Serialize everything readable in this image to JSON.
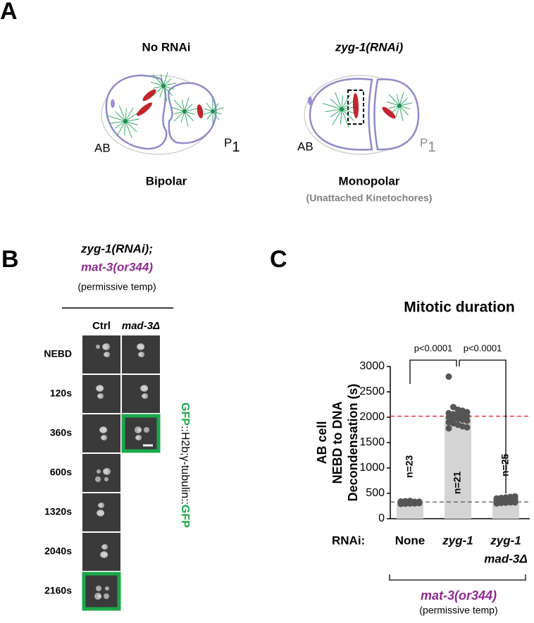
{
  "panel_a": {
    "label": "A",
    "left": {
      "title": "No RNAi",
      "cell_ab": "AB",
      "cell_p": "P",
      "cell_p_sub": "1",
      "caption": "Bipolar"
    },
    "right": {
      "title": "zyg-1(RNAi)",
      "cell_ab": "AB",
      "cell_p": "P",
      "cell_p_sub": "1",
      "caption": "Monopolar",
      "subcaption": "(Unattached Kinetochores)"
    }
  },
  "panel_b": {
    "label": "B",
    "title_line1": "zyg-1(RNAi);",
    "title_line2": "mat-3(or344)",
    "title_line3": "(permissive temp)",
    "columns": [
      "Ctrl",
      "mad-3Δ"
    ],
    "rows": [
      "NEBD",
      "120s",
      "360s",
      "600s",
      "1320s",
      "2040s",
      "2160s"
    ],
    "side_label": [
      "GFP",
      "::H2b;γ-tubulin::",
      "GFP"
    ]
  },
  "panel_c": {
    "label": "C"
  },
  "chart_data": {
    "type": "bar",
    "title": "Mitotic duration",
    "y_label": [
      "AB cell",
      "NEBD to DNA",
      "Decondensation (s)"
    ],
    "x_label": "RNAi:",
    "categories": [
      [
        "None"
      ],
      [
        "zyg-1"
      ],
      [
        "zyg-1",
        "mad-3Δ"
      ]
    ],
    "values": [
      330,
      2000,
      325
    ],
    "color": "#d4d4d4",
    "points": [
      [
        290,
        295,
        300,
        300,
        305,
        305,
        310,
        310,
        310,
        315,
        315,
        320,
        320,
        320,
        325,
        325,
        330,
        330,
        335,
        335,
        340,
        345,
        350
      ],
      [
        2800,
        2200,
        2150,
        2130,
        2100,
        2080,
        2060,
        2050,
        2040,
        2020,
        2000,
        1980,
        1970,
        1950,
        1930,
        1900,
        1880,
        1850,
        1820,
        1800,
        1780
      ],
      [
        300,
        310,
        315,
        320,
        320,
        325,
        330,
        330,
        335,
        340,
        345,
        350,
        355,
        360,
        365,
        370,
        375,
        380,
        385,
        390,
        400,
        410,
        420,
        430,
        440
      ]
    ],
    "point_color": "#555555",
    "n_labels": [
      "n=23",
      "n=21",
      "n=25"
    ],
    "comparisons": [
      "p<0.0001",
      "p<0.0001"
    ],
    "reference_lines": [
      {
        "value": 2020,
        "color": "#e8262a"
      },
      {
        "value": 330,
        "color": "#555555"
      }
    ],
    "ylim": [
      0,
      3000
    ],
    "yticks": [
      0,
      500,
      1000,
      1500,
      2000,
      2500,
      3000
    ],
    "group_label": "mat-3(or344)",
    "group_sublabel": "(permissive temp)"
  }
}
